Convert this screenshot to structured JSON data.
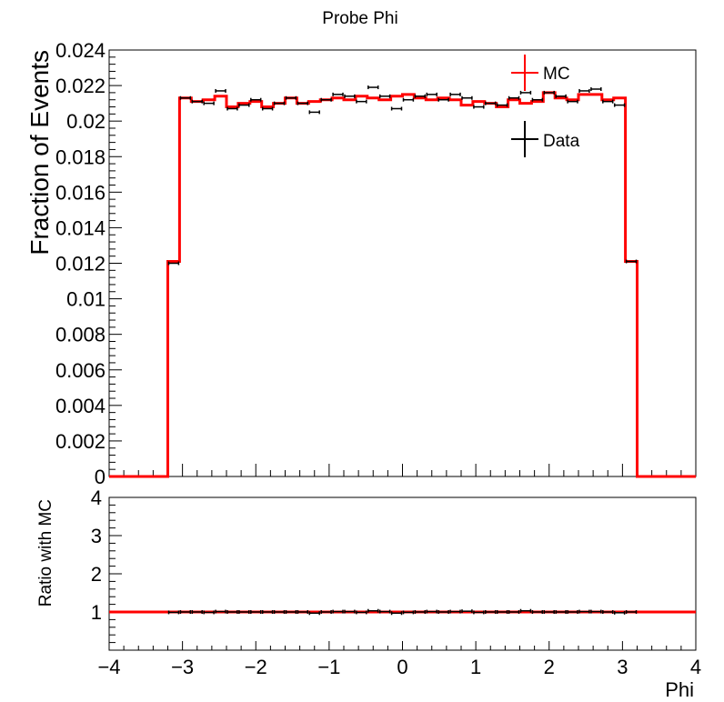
{
  "chart_data": [
    {
      "type": "line",
      "title": "Probe Phi",
      "ylabel": "Fraction of Events",
      "xlabel": "",
      "xlim": [
        -4,
        4
      ],
      "ylim": [
        0,
        0.024
      ],
      "yticks": [
        "0",
        "0.002",
        "0.004",
        "0.006",
        "0.008",
        "0.01",
        "0.012",
        "0.014",
        "0.016",
        "0.018",
        "0.02",
        "0.022",
        "0.024"
      ],
      "legend_position": "top-right",
      "colors": {
        "mc": "#ff0000",
        "data": "#000000"
      },
      "edges": [
        -3.2,
        -3.04,
        -2.88,
        -2.72,
        -2.56,
        -2.4,
        -2.24,
        -2.08,
        -1.92,
        -1.76,
        -1.6,
        -1.44,
        -1.28,
        -1.12,
        -0.96,
        -0.8,
        -0.64,
        -0.48,
        -0.32,
        -0.16,
        0,
        0.16,
        0.32,
        0.48,
        0.64,
        0.8,
        0.96,
        1.12,
        1.28,
        1.44,
        1.6,
        1.76,
        1.92,
        2.08,
        2.24,
        2.4,
        2.56,
        2.72,
        2.88,
        3.04,
        3.2
      ],
      "series": [
        {
          "name": "MC",
          "values": [
            0.0121,
            0.0213,
            0.0211,
            0.0212,
            0.0214,
            0.0208,
            0.021,
            0.0211,
            0.0208,
            0.021,
            0.0213,
            0.021,
            0.0211,
            0.0212,
            0.0213,
            0.0212,
            0.0214,
            0.0213,
            0.0212,
            0.0214,
            0.0215,
            0.0213,
            0.0212,
            0.0213,
            0.0212,
            0.0209,
            0.0211,
            0.021,
            0.0208,
            0.0212,
            0.021,
            0.0211,
            0.0216,
            0.0213,
            0.0212,
            0.0215,
            0.0215,
            0.0212,
            0.0213,
            0.0121
          ]
        },
        {
          "name": "Data",
          "values": [
            0.012,
            0.0213,
            0.0211,
            0.021,
            0.0217,
            0.0207,
            0.0209,
            0.0212,
            0.0207,
            0.021,
            0.0213,
            0.021,
            0.0205,
            0.0212,
            0.0215,
            0.0214,
            0.0211,
            0.0219,
            0.0214,
            0.0207,
            0.0212,
            0.0214,
            0.0215,
            0.0212,
            0.0215,
            0.0213,
            0.0208,
            0.021,
            0.0209,
            0.0213,
            0.0216,
            0.0212,
            0.0216,
            0.0214,
            0.0211,
            0.0217,
            0.0218,
            0.0211,
            0.0209,
            0.0121
          ]
        }
      ]
    },
    {
      "type": "line",
      "title": "",
      "ylabel": "Ratio with MC",
      "xlabel": "Phi",
      "xlim": [
        -4,
        4
      ],
      "ylim": [
        0,
        4
      ],
      "xticks": [
        "−4",
        "−3",
        "−2",
        "−1",
        "0",
        "1",
        "2",
        "3",
        "4"
      ],
      "yticks": [
        "1",
        "2",
        "3",
        "4"
      ],
      "reference_line": 1,
      "ratio": [
        0.99,
        1.0,
        1.0,
        0.99,
        1.01,
        1.0,
        1.0,
        1.0,
        1.0,
        1.0,
        1.0,
        1.0,
        0.97,
        1.0,
        1.01,
        1.01,
        0.99,
        1.03,
        1.01,
        0.97,
        0.99,
        1.0,
        1.01,
        1.0,
        1.01,
        1.02,
        0.99,
        1.0,
        1.0,
        1.0,
        1.03,
        1.0,
        1.0,
        1.0,
        1.0,
        1.01,
        1.01,
        1.0,
        0.98,
        1.0
      ]
    }
  ]
}
